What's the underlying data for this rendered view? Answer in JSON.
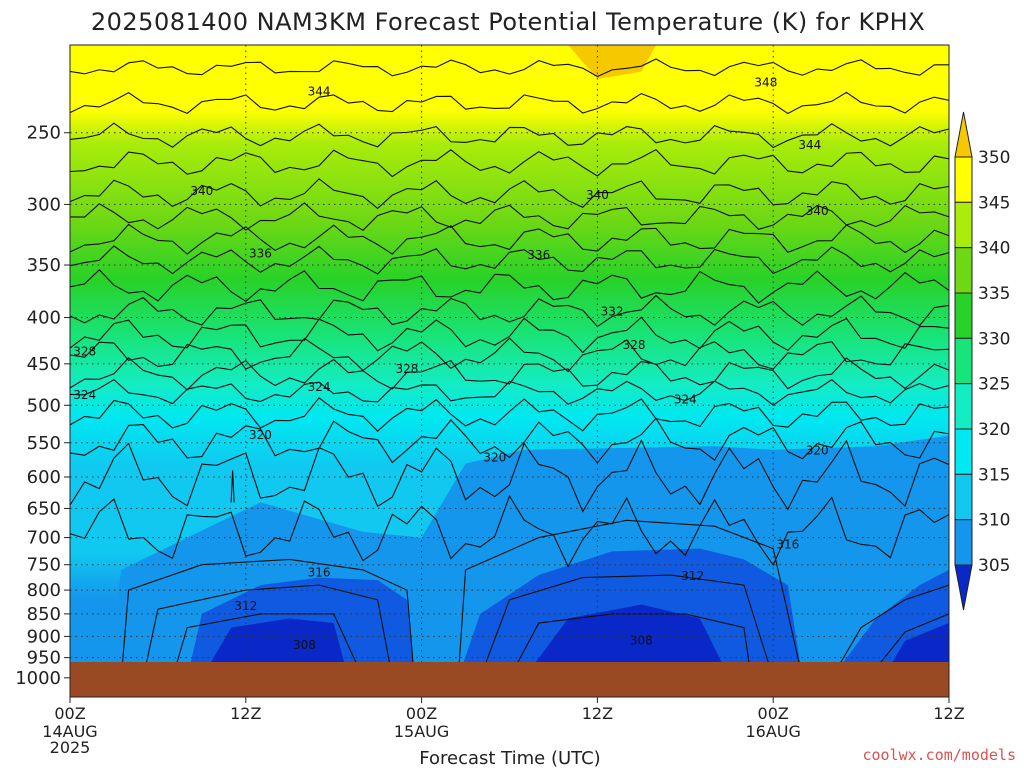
{
  "chart_data": {
    "type": "heatmap",
    "title": "2025081400 NAM3KM Forecast Potential Temperature (K) for KPHX",
    "xlabel": "Forecast Time (UTC)",
    "ylabel": "",
    "x_ticks": [
      {
        "label": "00Z",
        "sub": [
          "14AUG",
          "2025"
        ],
        "hour": 0
      },
      {
        "label": "12Z",
        "sub": [],
        "hour": 12
      },
      {
        "label": "00Z",
        "sub": [
          "15AUG"
        ],
        "hour": 24
      },
      {
        "label": "12Z",
        "sub": [],
        "hour": 36
      },
      {
        "label": "00Z",
        "sub": [
          "16AUG"
        ],
        "hour": 48
      },
      {
        "label": "12Z",
        "sub": [],
        "hour": 60
      }
    ],
    "xlim_hours": [
      0,
      60
    ],
    "y_ticks": [
      250,
      300,
      350,
      400,
      450,
      500,
      550,
      600,
      650,
      700,
      750,
      800,
      850,
      900,
      950,
      1000
    ],
    "ylim_hPa": [
      1000,
      200
    ],
    "colorbar": {
      "levels": [
        305,
        310,
        315,
        320,
        325,
        330,
        335,
        340,
        345,
        350
      ],
      "colors": [
        "#0a28c8",
        "#0f5ae0",
        "#1496ec",
        "#10c8f0",
        "#00e8f0",
        "#14ecc4",
        "#18e47c",
        "#28d228",
        "#6ed814",
        "#aaec0a",
        "#ffff00",
        "#f5c800"
      ]
    },
    "contour_labels": [
      {
        "value": "344",
        "hour": 17,
        "p": 225
      },
      {
        "value": "348",
        "hour": 47.5,
        "p": 220
      },
      {
        "value": "344",
        "hour": 50.5,
        "p": 258
      },
      {
        "value": "340",
        "hour": 9,
        "p": 290
      },
      {
        "value": "340",
        "hour": 36,
        "p": 293
      },
      {
        "value": "340",
        "hour": 51,
        "p": 305
      },
      {
        "value": "336",
        "hour": 13,
        "p": 340
      },
      {
        "value": "336",
        "hour": 32,
        "p": 341
      },
      {
        "value": "332",
        "hour": 37,
        "p": 394
      },
      {
        "value": "328",
        "hour": 1,
        "p": 436
      },
      {
        "value": "328",
        "hour": 23,
        "p": 456
      },
      {
        "value": "328",
        "hour": 38.5,
        "p": 429
      },
      {
        "value": "324",
        "hour": 1,
        "p": 487
      },
      {
        "value": "324",
        "hour": 17,
        "p": 477
      },
      {
        "value": "324",
        "hour": 42,
        "p": 493
      },
      {
        "value": "320",
        "hour": 13,
        "p": 539
      },
      {
        "value": "320",
        "hour": 29,
        "p": 571
      },
      {
        "value": "320",
        "hour": 51,
        "p": 561
      },
      {
        "value": "316",
        "hour": 17,
        "p": 765
      },
      {
        "value": "316",
        "hour": 49,
        "p": 712
      },
      {
        "value": "312",
        "hour": 12,
        "p": 833
      },
      {
        "value": "312",
        "hour": 42.5,
        "p": 772
      },
      {
        "value": "308",
        "hour": 16,
        "p": 920
      },
      {
        "value": "308",
        "hour": 39,
        "p": 909
      }
    ],
    "surface_color": "#9a4a22",
    "grid": true
  },
  "credit": "coolwx.com/models"
}
